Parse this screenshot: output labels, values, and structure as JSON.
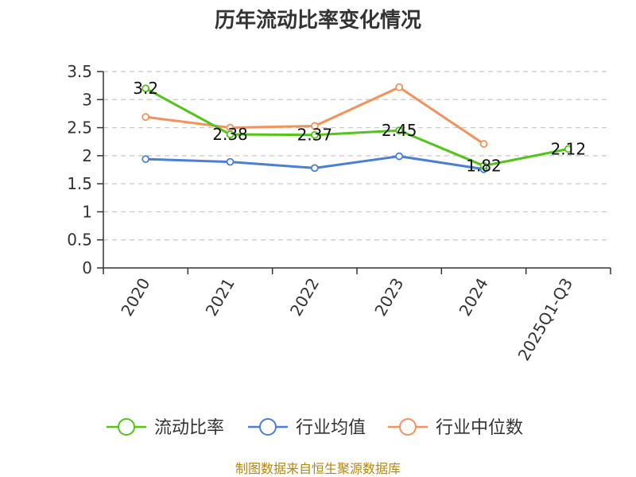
{
  "chart_data": {
    "type": "line",
    "title": "历年流动比率变化情况",
    "categories": [
      "2020",
      "2021",
      "2022",
      "2023",
      "2024",
      "2025Q1-Q3"
    ],
    "ylim": [
      0,
      3.5
    ],
    "yticks": [
      0,
      0.5,
      1,
      1.5,
      2,
      2.5,
      3,
      3.5
    ],
    "ytick_labels": [
      "0",
      "0.5",
      "1",
      "1.5",
      "2",
      "2.5",
      "3",
      "3.5"
    ],
    "grid": true,
    "legend_position": "bottom",
    "series": [
      {
        "name": "流动比率",
        "color": "#52c41a",
        "values": [
          3.2,
          2.38,
          2.37,
          2.45,
          1.82,
          2.12
        ],
        "labels": [
          "3.2",
          "2.38",
          "2.37",
          "2.45",
          "1.82",
          "2.12"
        ]
      },
      {
        "name": "行业均值",
        "color": "#4a7fd6",
        "values": [
          1.94,
          1.89,
          1.78,
          1.99,
          1.76,
          null
        ]
      },
      {
        "name": "行业中位数",
        "color": "#f5915a",
        "values": [
          2.69,
          2.5,
          2.53,
          3.22,
          2.21,
          null
        ]
      }
    ],
    "source": "制图数据来自恒生聚源数据库"
  }
}
